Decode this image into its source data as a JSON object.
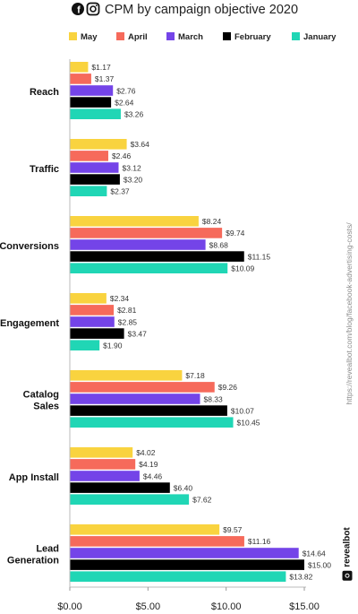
{
  "chart_data": {
    "type": "bar",
    "orientation": "horizontal",
    "title": "CPM by campaign objective 2020",
    "categories": [
      "Reach",
      "Traffic",
      "Conversions",
      "Engagement",
      "Catalog Sales",
      "App Install",
      "Lead Generation"
    ],
    "series": [
      {
        "name": "May",
        "color": "#f9d33f",
        "values": [
          1.17,
          3.64,
          8.24,
          2.34,
          7.18,
          4.02,
          9.57
        ]
      },
      {
        "name": "April",
        "color": "#f66a5b",
        "values": [
          1.37,
          2.46,
          9.74,
          2.81,
          9.26,
          4.19,
          11.16
        ]
      },
      {
        "name": "March",
        "color": "#7444e8",
        "values": [
          2.76,
          3.12,
          8.68,
          2.85,
          8.33,
          4.46,
          14.64
        ]
      },
      {
        "name": "February",
        "color": "#000000",
        "values": [
          2.64,
          3.2,
          11.15,
          3.47,
          10.07,
          6.4,
          15.0
        ]
      },
      {
        "name": "January",
        "color": "#20d6b5",
        "values": [
          3.26,
          2.37,
          10.09,
          1.9,
          10.45,
          7.62,
          13.82
        ]
      }
    ],
    "value_labels": [
      [
        "$1.17",
        "$3.64",
        "$8.24",
        "$2.34",
        "$7.18",
        "$4.02",
        "$9.57"
      ],
      [
        "$1.37",
        "$2.46",
        "$9.74",
        "$2.81",
        "$9.26",
        "$4.19",
        "$11.16"
      ],
      [
        "$2.76",
        "$3.12",
        "$8.68",
        "$2.85",
        "$8.33",
        "$4.46",
        "$14.64"
      ],
      [
        "$2.64",
        "$3.20",
        "$11.15",
        "$3.47",
        "$10.07",
        "$6.40",
        "$15.00"
      ],
      [
        "$3.26",
        "$2.37",
        "$10.09",
        "$1.90",
        "$10.45",
        "$7.62",
        "$13.82"
      ]
    ],
    "xlim": [
      0,
      15
    ],
    "x_ticks": [
      0,
      5,
      10,
      15
    ],
    "x_tick_labels": [
      "$0.00",
      "$5.00",
      "$10.00",
      "$15.00"
    ],
    "grid": false,
    "legend_position": "top"
  },
  "icons": [
    "facebook-icon",
    "instagram-icon"
  ],
  "source_url": "https://revealbot.com/blog/facebook-advertising-costs/",
  "brand": "revealbot"
}
